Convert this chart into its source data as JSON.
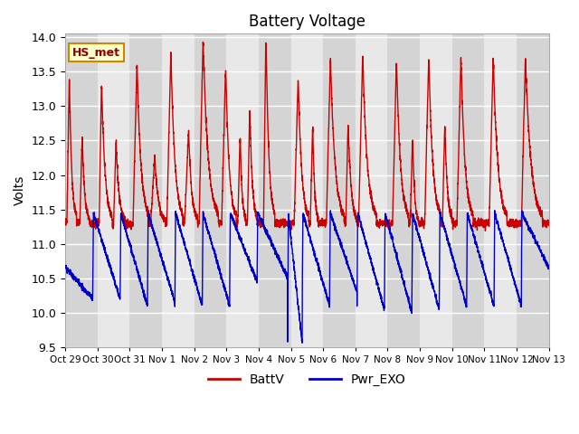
{
  "title": "Battery Voltage",
  "ylabel": "Volts",
  "xlabel": "",
  "xlim": [
    0,
    15
  ],
  "ylim": [
    9.5,
    14.05
  ],
  "yticks": [
    9.5,
    10.0,
    10.5,
    11.0,
    11.5,
    12.0,
    12.5,
    13.0,
    13.5,
    14.0
  ],
  "xtick_labels": [
    "Oct 29",
    "Oct 30",
    "Oct 31",
    "Nov 1",
    "Nov 2",
    "Nov 3",
    "Nov 4",
    "Nov 5",
    "Nov 6",
    "Nov 7",
    "Nov 8",
    "Nov 9",
    "Nov 10",
    "Nov 11",
    "Nov 12",
    "Nov 13"
  ],
  "xtick_positions": [
    0,
    1,
    2,
    3,
    4,
    5,
    6,
    7,
    8,
    9,
    10,
    11,
    12,
    13,
    14,
    15
  ],
  "battv_color": "#cc0000",
  "pwr_exo_color": "#0000cc",
  "background_color": "#ffffff",
  "plot_bg_color": "#e8e8e8",
  "grid_color": "#ffffff",
  "legend_label_battv": "BattV",
  "legend_label_pwr": "Pwr_EXO",
  "annotation_text": "HS_met",
  "annotation_bg": "#ffffcc",
  "annotation_border": "#cc8800",
  "band_color_dark": "#d4d4d4",
  "band_color_light": "#e8e8e8"
}
